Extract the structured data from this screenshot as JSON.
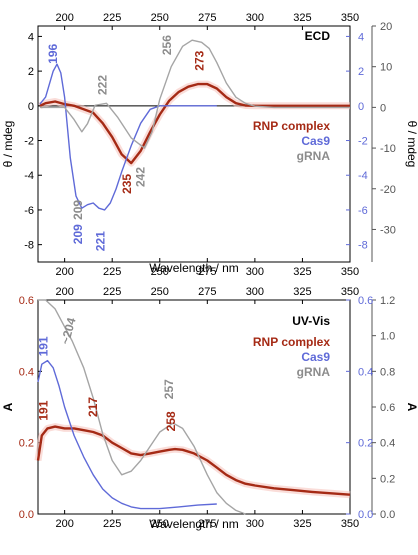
{
  "chart_data": [
    {
      "type": "line",
      "title": "ECD",
      "xlabel": "Wavelength / nm",
      "ylabel": "θ / mdeg",
      "ylabel_right": "θ / mdeg",
      "xlim": [
        186,
        350
      ],
      "ylim": [
        -9,
        4.6
      ],
      "ylim_right": [
        -38,
        20
      ],
      "x_ticks": [
        200,
        225,
        250,
        275,
        300,
        325,
        350
      ],
      "y_ticks": [
        4,
        2,
        0,
        -2,
        -4,
        -6,
        -8
      ],
      "y_ticks_right": [
        20,
        10,
        0,
        -10,
        -20,
        -30
      ],
      "y_ticks_right_blue": [
        4,
        2,
        0,
        -2,
        -4,
        -6,
        -8
      ],
      "zero_line": true,
      "legend": [
        "RNP complex",
        "Cas9",
        "gRNA"
      ],
      "legend_position": "right",
      "series": [
        {
          "name": "RNP complex",
          "color": "#a52a15",
          "axis": "left",
          "x": [
            187,
            190,
            195,
            200,
            205,
            210,
            215,
            220,
            225,
            230,
            235,
            240,
            245,
            250,
            255,
            260,
            265,
            270,
            275,
            280,
            285,
            290,
            295,
            300,
            310,
            320,
            330,
            340,
            350
          ],
          "y": [
            0.0,
            0.15,
            0.25,
            0.1,
            0.0,
            -0.2,
            -0.4,
            -1.0,
            -1.8,
            -2.8,
            -3.3,
            -2.6,
            -1.5,
            -0.5,
            0.3,
            0.8,
            1.1,
            1.25,
            1.25,
            1.0,
            0.5,
            0.15,
            0.02,
            0.0,
            0.0,
            0.0,
            0.0,
            0.0,
            0.0
          ]
        },
        {
          "name": "Cas9",
          "color": "#5f6ad8",
          "axis": "right_blue",
          "x": [
            187,
            190,
            194,
            196,
            198,
            200,
            203,
            206,
            209,
            212,
            215,
            218,
            221,
            224,
            227,
            230,
            235,
            240,
            245,
            250,
            255,
            260,
            265,
            270,
            275,
            280
          ],
          "y": [
            0.1,
            0.5,
            2.0,
            2.4,
            1.9,
            0.5,
            -3.0,
            -5.2,
            -5.9,
            -5.7,
            -5.6,
            -5.9,
            -6.0,
            -5.6,
            -4.8,
            -3.8,
            -2.3,
            -1.0,
            -0.2,
            0.0,
            0.0,
            0.0,
            0.0,
            0.0,
            0.0,
            0.0
          ]
        },
        {
          "name": "gRNA",
          "color": "#a5a5a5",
          "axis": "right",
          "x": [
            187,
            195,
            200,
            205,
            209,
            212,
            216,
            222,
            228,
            235,
            242,
            246,
            250,
            256,
            262,
            267,
            272,
            276,
            280,
            285,
            290,
            295,
            300,
            310,
            330,
            350
          ],
          "y": [
            0.0,
            0.0,
            0.0,
            -3.0,
            -6.0,
            -4.0,
            0.5,
            1.0,
            -2.5,
            -7.5,
            -10.0,
            -6.0,
            2.0,
            10.0,
            15.0,
            16.5,
            16.0,
            14.5,
            11.0,
            6.0,
            2.5,
            1.0,
            0.3,
            0.0,
            0.0,
            0.0
          ]
        }
      ],
      "annotations": [
        {
          "text": "196",
          "color": "#5f6ad8"
        },
        {
          "text": "209",
          "color": "#5f6ad8"
        },
        {
          "text": "221",
          "color": "#5f6ad8"
        },
        {
          "text": "235",
          "color": "#a52a15"
        },
        {
          "text": "273",
          "color": "#a52a15"
        },
        {
          "text": "222",
          "color": "#8c8c8c"
        },
        {
          "text": "209",
          "color": "#8c8c8c"
        },
        {
          "text": "242",
          "color": "#8c8c8c"
        },
        {
          "text": "256",
          "color": "#8c8c8c"
        }
      ]
    },
    {
      "type": "line",
      "title": "UV-Vis",
      "xlabel": "Wavelength / nm",
      "ylabel": "A",
      "ylabel_right": "A",
      "xlim": [
        186,
        350
      ],
      "ylim": [
        0,
        0.6
      ],
      "ylim_right": [
        0,
        1.2
      ],
      "x_ticks": [
        200,
        225,
        250,
        275,
        300,
        325,
        350
      ],
      "y_ticks": [
        0.0,
        0.2,
        0.4,
        0.6
      ],
      "y_ticks_right_blue": [
        0.0,
        0.2,
        0.4,
        0.6
      ],
      "y_ticks_right": [
        0.0,
        0.2,
        0.4,
        0.6,
        0.8,
        1.0,
        1.2
      ],
      "legend": [
        "RNP complex",
        "Cas9",
        "gRNA"
      ],
      "legend_position": "top-right",
      "series": [
        {
          "name": "RNP complex",
          "color": "#a52a15",
          "axis": "left",
          "x": [
            186,
            188,
            191,
            195,
            200,
            205,
            210,
            215,
            220,
            225,
            230,
            235,
            240,
            245,
            250,
            255,
            258,
            262,
            268,
            275,
            280,
            285,
            290,
            295,
            300,
            310,
            320,
            330,
            340,
            350
          ],
          "y": [
            0.15,
            0.22,
            0.24,
            0.245,
            0.24,
            0.24,
            0.235,
            0.23,
            0.22,
            0.2,
            0.185,
            0.17,
            0.165,
            0.17,
            0.175,
            0.18,
            0.182,
            0.18,
            0.17,
            0.15,
            0.13,
            0.11,
            0.095,
            0.085,
            0.08,
            0.072,
            0.067,
            0.062,
            0.058,
            0.054
          ]
        },
        {
          "name": "Cas9",
          "color": "#5f6ad8",
          "axis": "right_blue",
          "x": [
            186,
            188,
            191,
            194,
            197,
            200,
            205,
            210,
            215,
            220,
            225,
            230,
            235,
            240,
            250,
            260,
            270,
            280
          ],
          "y": [
            0.37,
            0.42,
            0.43,
            0.41,
            0.36,
            0.3,
            0.22,
            0.16,
            0.11,
            0.07,
            0.045,
            0.03,
            0.02,
            0.015,
            0.015,
            0.02,
            0.025,
            0.028
          ]
        },
        {
          "name": "gRNA",
          "color": "#a5a5a5",
          "axis": "right",
          "x": [
            186,
            190,
            195,
            200,
            204,
            210,
            215,
            220,
            225,
            230,
            235,
            240,
            245,
            250,
            257,
            262,
            268,
            275,
            280,
            285,
            290,
            295
          ],
          "y": [
            1.2,
            1.2,
            1.15,
            1.05,
            0.97,
            0.82,
            0.65,
            0.45,
            0.3,
            0.22,
            0.24,
            0.3,
            0.38,
            0.46,
            0.51,
            0.48,
            0.38,
            0.22,
            0.12,
            0.06,
            0.02,
            0.0
          ]
        }
      ],
      "annotations": [
        {
          "text": "191",
          "color": "#5f6ad8"
        },
        {
          "text": "191",
          "color": "#a52a15"
        },
        {
          "text": "217",
          "color": "#a52a15"
        },
        {
          "text": "258",
          "color": "#a52a15"
        },
        {
          "text": "~204",
          "color": "#8c8c8c"
        },
        {
          "text": "257",
          "color": "#8c8c8c"
        }
      ]
    }
  ]
}
